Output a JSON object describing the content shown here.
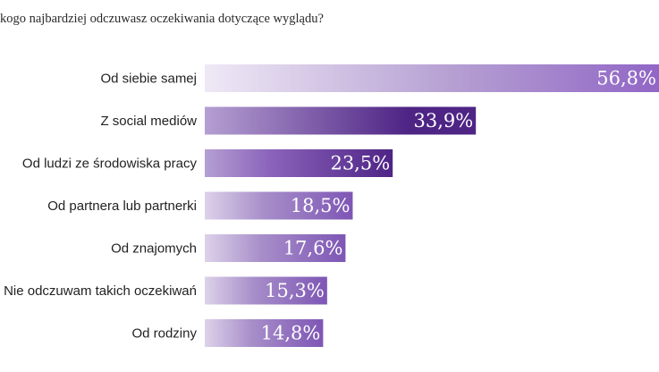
{
  "title": "kogo najbardziej odczuwasz oczekiwania dotyczące wyglądu?",
  "chart_data": {
    "type": "bar",
    "orientation": "horizontal",
    "title": "kogo najbardziej odczuwasz oczekiwania dotyczące wyglądu?",
    "categories": [
      "Od siebie samej",
      "Z social mediów",
      "Od ludzi ze środowiska pracy",
      "Od partnera lub partnerki",
      "Od znajomych",
      "Nie odczuwam takich oczekiwań",
      "Od rodziny"
    ],
    "values": [
      56.8,
      33.9,
      23.5,
      18.5,
      17.6,
      15.3,
      14.8
    ],
    "value_labels": [
      "56,8%",
      "33,9%",
      "23,5%",
      "18,5%",
      "17,6%",
      "15,3%",
      "14,8%"
    ],
    "unit": "%",
    "xlim": [
      0,
      56.8
    ],
    "grid": false,
    "legend": "none",
    "colors": {
      "gradient_light": "#efe9f6",
      "gradient_mid": "#b59fd2",
      "gradient_dark": "#9166c6",
      "highlight_dark": "#4e2485",
      "text": "#222222"
    }
  }
}
